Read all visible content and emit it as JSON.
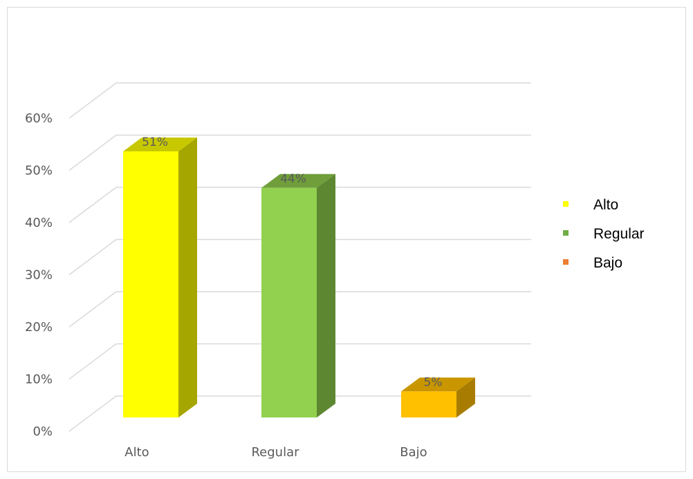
{
  "chart_data": {
    "type": "bar",
    "style": "3d-clustered-column",
    "categories": [
      "Alto",
      "Regular",
      "Bajo"
    ],
    "values": [
      0.51,
      0.44,
      0.05
    ],
    "data_labels": [
      "51%",
      "44%",
      "5%"
    ],
    "colors": [
      "#ffff00",
      "#92d050",
      "#ffc000"
    ],
    "side_colors": [
      "#a6a600",
      "#5e8731",
      "#a87c00"
    ],
    "top_colors": [
      "#c8c800",
      "#6f9e3b",
      "#c99600"
    ],
    "yticks": [
      "0%",
      "10%",
      "20%",
      "30%",
      "40%",
      "50%",
      "60%"
    ],
    "ylim": [
      0,
      0.6
    ],
    "xlabel": "",
    "ylabel": "",
    "title": "",
    "grid": true,
    "legend": {
      "position": "right",
      "items": [
        {
          "label": "Alto",
          "color": "#ffff00"
        },
        {
          "label": "Regular",
          "color": "#70ad47"
        },
        {
          "label": "Bajo",
          "color": "#ed7d31"
        }
      ]
    }
  }
}
